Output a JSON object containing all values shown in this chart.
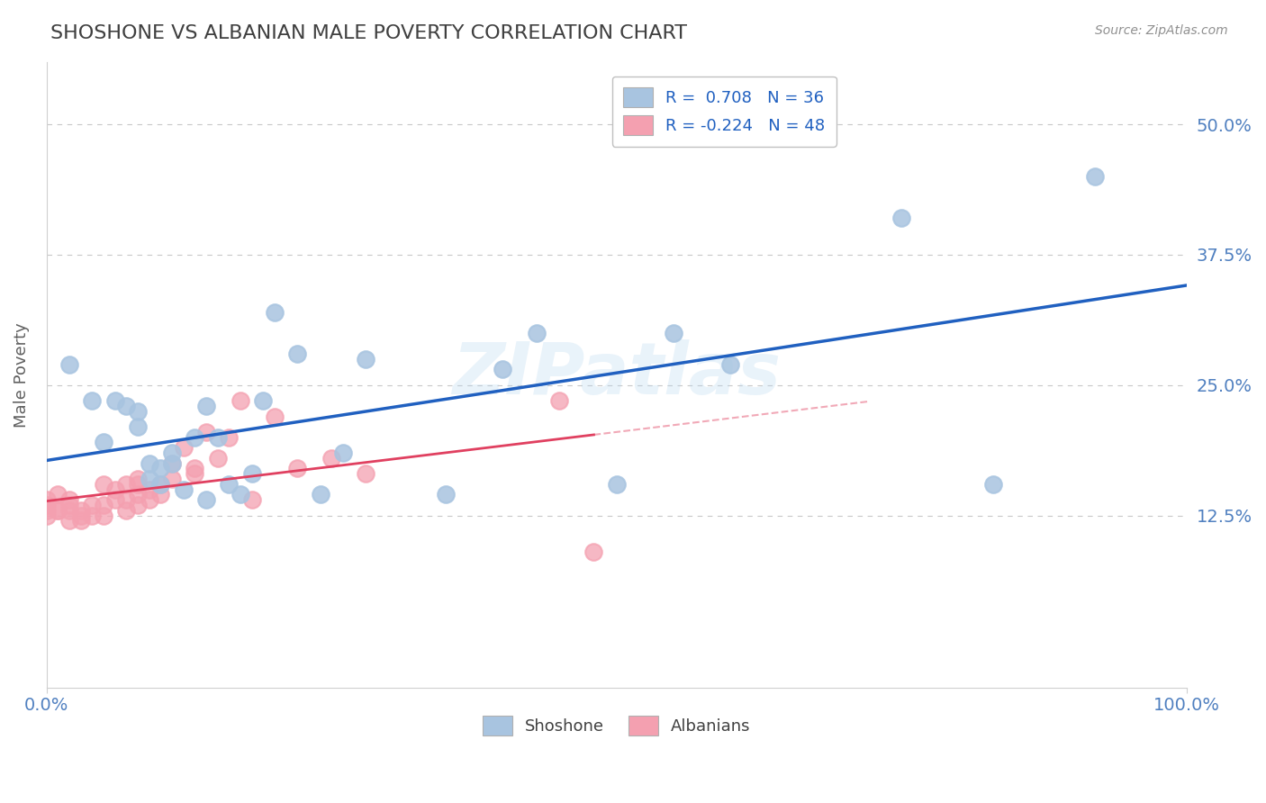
{
  "title": "SHOSHONE VS ALBANIAN MALE POVERTY CORRELATION CHART",
  "source_text": "Source: ZipAtlas.com",
  "ylabel": "Male Poverty",
  "watermark": "ZIPatlas",
  "xlim": [
    0.0,
    1.0
  ],
  "ylim": [
    -0.04,
    0.56
  ],
  "xtick_vals": [
    0.0,
    1.0
  ],
  "xtick_labels": [
    "0.0%",
    "100.0%"
  ],
  "ytick_vals": [
    0.125,
    0.25,
    0.375,
    0.5
  ],
  "ytick_labels": [
    "12.5%",
    "25.0%",
    "37.5%",
    "50.0%"
  ],
  "shoshone_color": "#a8c4e0",
  "albanian_color": "#f4a0b0",
  "shoshone_line_color": "#2060c0",
  "albanian_line_color": "#e04060",
  "shoshone_R": 0.708,
  "shoshone_N": 36,
  "albanian_R": -0.224,
  "albanian_N": 48,
  "shoshone_x": [
    0.02,
    0.04,
    0.05,
    0.06,
    0.07,
    0.08,
    0.08,
    0.09,
    0.09,
    0.1,
    0.1,
    0.11,
    0.11,
    0.12,
    0.13,
    0.14,
    0.14,
    0.15,
    0.16,
    0.17,
    0.18,
    0.19,
    0.2,
    0.22,
    0.24,
    0.26,
    0.28,
    0.35,
    0.4,
    0.43,
    0.5,
    0.55,
    0.6,
    0.75,
    0.83,
    0.92
  ],
  "shoshone_y": [
    0.27,
    0.235,
    0.195,
    0.235,
    0.23,
    0.21,
    0.225,
    0.175,
    0.16,
    0.155,
    0.17,
    0.175,
    0.185,
    0.15,
    0.2,
    0.23,
    0.14,
    0.2,
    0.155,
    0.145,
    0.165,
    0.235,
    0.32,
    0.28,
    0.145,
    0.185,
    0.275,
    0.145,
    0.265,
    0.3,
    0.155,
    0.3,
    0.27,
    0.41,
    0.155,
    0.45
  ],
  "albanian_x": [
    0.0,
    0.0,
    0.0,
    0.0,
    0.01,
    0.01,
    0.01,
    0.02,
    0.02,
    0.02,
    0.02,
    0.03,
    0.03,
    0.03,
    0.04,
    0.04,
    0.05,
    0.05,
    0.05,
    0.06,
    0.06,
    0.07,
    0.07,
    0.07,
    0.08,
    0.08,
    0.08,
    0.08,
    0.09,
    0.09,
    0.1,
    0.1,
    0.11,
    0.11,
    0.12,
    0.13,
    0.13,
    0.14,
    0.15,
    0.16,
    0.17,
    0.18,
    0.2,
    0.22,
    0.25,
    0.28,
    0.45,
    0.48
  ],
  "albanian_y": [
    0.14,
    0.135,
    0.13,
    0.125,
    0.145,
    0.13,
    0.13,
    0.14,
    0.135,
    0.13,
    0.12,
    0.13,
    0.125,
    0.12,
    0.135,
    0.125,
    0.155,
    0.135,
    0.125,
    0.15,
    0.14,
    0.155,
    0.14,
    0.13,
    0.16,
    0.155,
    0.145,
    0.135,
    0.15,
    0.14,
    0.155,
    0.145,
    0.175,
    0.16,
    0.19,
    0.17,
    0.165,
    0.205,
    0.18,
    0.2,
    0.235,
    0.14,
    0.22,
    0.17,
    0.18,
    0.165,
    0.235,
    0.09
  ],
  "background_color": "#ffffff",
  "title_color": "#404040",
  "axis_label_color": "#606060",
  "tick_label_color": "#5080c0",
  "legend_shoshone_label": "Shoshone",
  "legend_albanian_label": "Albanians"
}
